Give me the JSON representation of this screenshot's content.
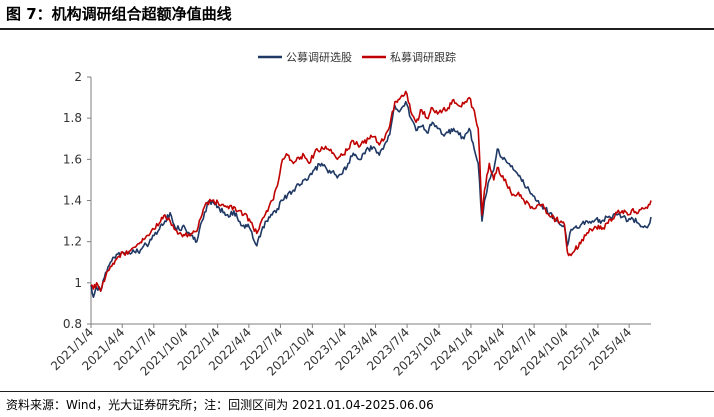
{
  "figure": {
    "title": "图 7：机构调研组合超额净值曲线",
    "source": "资料来源：Wind，光大证券研究所；注：回测区间为 2021.01.04-2025.06.06"
  },
  "chart_data": {
    "type": "line",
    "title": "",
    "xlabel": "",
    "ylabel": "",
    "ylim": [
      0.8,
      2.0
    ],
    "yticks": [
      "0.8",
      "1",
      "1.2",
      "1.4",
      "1.6",
      "1.8",
      "2"
    ],
    "xticks": [
      "2021/1/4",
      "2021/4/4",
      "2021/7/4",
      "2021/10/4",
      "2022/1/4",
      "2022/4/4",
      "2022/7/4",
      "2022/10/4",
      "2023/1/4",
      "2023/4/4",
      "2023/7/4",
      "2023/10/4",
      "2024/1/4",
      "2024/4/4",
      "2024/7/4",
      "2024/10/4",
      "2025/1/4",
      "2025/4/4"
    ],
    "x_range": [
      "2021-01-04",
      "2025-06-06"
    ],
    "grid": false,
    "legend_position": "top-center",
    "series": [
      {
        "name": "公募调研选股",
        "color": "#1f3864",
        "points": [
          [
            "2021-01-04",
            0.99
          ],
          [
            "2021-01-11",
            0.93
          ],
          [
            "2021-01-20",
            0.98
          ],
          [
            "2021-02-01",
            0.96
          ],
          [
            "2021-02-15",
            1.05
          ],
          [
            "2021-03-01",
            1.1
          ],
          [
            "2021-03-15",
            1.12
          ],
          [
            "2021-04-05",
            1.15
          ],
          [
            "2021-04-20",
            1.14
          ],
          [
            "2021-05-05",
            1.16
          ],
          [
            "2021-05-20",
            1.15
          ],
          [
            "2021-06-05",
            1.18
          ],
          [
            "2021-06-20",
            1.19
          ],
          [
            "2021-07-05",
            1.23
          ],
          [
            "2021-07-20",
            1.26
          ],
          [
            "2021-08-05",
            1.3
          ],
          [
            "2021-08-20",
            1.34
          ],
          [
            "2021-09-01",
            1.28
          ],
          [
            "2021-09-15",
            1.26
          ],
          [
            "2021-10-01",
            1.27
          ],
          [
            "2021-10-20",
            1.23
          ],
          [
            "2021-11-05",
            1.2
          ],
          [
            "2021-11-20",
            1.3
          ],
          [
            "2021-12-05",
            1.38
          ],
          [
            "2021-12-20",
            1.4
          ],
          [
            "2022-01-05",
            1.37
          ],
          [
            "2022-01-20",
            1.34
          ],
          [
            "2022-02-05",
            1.32
          ],
          [
            "2022-02-20",
            1.35
          ],
          [
            "2022-03-05",
            1.3
          ],
          [
            "2022-03-20",
            1.28
          ],
          [
            "2022-04-05",
            1.27
          ],
          [
            "2022-04-27",
            1.18
          ],
          [
            "2022-05-10",
            1.25
          ],
          [
            "2022-05-25",
            1.3
          ],
          [
            "2022-06-10",
            1.33
          ],
          [
            "2022-06-25",
            1.36
          ],
          [
            "2022-07-10",
            1.4
          ],
          [
            "2022-07-25",
            1.43
          ],
          [
            "2022-08-10",
            1.45
          ],
          [
            "2022-08-25",
            1.48
          ],
          [
            "2022-09-10",
            1.5
          ],
          [
            "2022-09-25",
            1.52
          ],
          [
            "2022-10-10",
            1.55
          ],
          [
            "2022-10-31",
            1.58
          ],
          [
            "2022-11-15",
            1.55
          ],
          [
            "2022-11-30",
            1.54
          ],
          [
            "2022-12-15",
            1.51
          ],
          [
            "2022-12-30",
            1.53
          ],
          [
            "2023-01-15",
            1.58
          ],
          [
            "2023-01-30",
            1.63
          ],
          [
            "2023-02-15",
            1.6
          ],
          [
            "2023-03-01",
            1.63
          ],
          [
            "2023-03-15",
            1.65
          ],
          [
            "2023-03-31",
            1.66
          ],
          [
            "2023-04-15",
            1.62
          ],
          [
            "2023-04-30",
            1.67
          ],
          [
            "2023-05-15",
            1.72
          ],
          [
            "2023-05-30",
            1.86
          ],
          [
            "2023-06-15",
            1.84
          ],
          [
            "2023-06-30",
            1.88
          ],
          [
            "2023-07-15",
            1.8
          ],
          [
            "2023-07-30",
            1.74
          ],
          [
            "2023-08-15",
            1.76
          ],
          [
            "2023-08-30",
            1.73
          ],
          [
            "2023-09-15",
            1.78
          ],
          [
            "2023-09-30",
            1.75
          ],
          [
            "2023-10-15",
            1.72
          ],
          [
            "2023-10-30",
            1.73
          ],
          [
            "2023-11-15",
            1.75
          ],
          [
            "2023-11-30",
            1.72
          ],
          [
            "2023-12-15",
            1.7
          ],
          [
            "2023-12-30",
            1.75
          ],
          [
            "2024-01-10",
            1.68
          ],
          [
            "2024-01-25",
            1.58
          ],
          [
            "2024-02-05",
            1.3
          ],
          [
            "2024-02-12",
            1.4
          ],
          [
            "2024-02-26",
            1.5
          ],
          [
            "2024-03-10",
            1.55
          ],
          [
            "2024-03-20",
            1.65
          ],
          [
            "2024-04-05",
            1.6
          ],
          [
            "2024-04-20",
            1.58
          ],
          [
            "2024-05-05",
            1.55
          ],
          [
            "2024-05-20",
            1.52
          ],
          [
            "2024-06-05",
            1.48
          ],
          [
            "2024-06-20",
            1.45
          ],
          [
            "2024-07-05",
            1.42
          ],
          [
            "2024-07-20",
            1.38
          ],
          [
            "2024-08-05",
            1.36
          ],
          [
            "2024-08-20",
            1.34
          ],
          [
            "2024-09-05",
            1.3
          ],
          [
            "2024-09-20",
            1.28
          ],
          [
            "2024-09-30",
            1.27
          ],
          [
            "2024-10-08",
            1.18
          ],
          [
            "2024-10-15",
            1.24
          ],
          [
            "2024-10-30",
            1.27
          ],
          [
            "2024-11-15",
            1.28
          ],
          [
            "2024-11-30",
            1.3
          ],
          [
            "2024-12-15",
            1.29
          ],
          [
            "2024-12-30",
            1.31
          ],
          [
            "2025-01-15",
            1.3
          ],
          [
            "2025-01-30",
            1.32
          ],
          [
            "2025-02-15",
            1.32
          ],
          [
            "2025-02-28",
            1.33
          ],
          [
            "2025-03-15",
            1.32
          ],
          [
            "2025-03-31",
            1.3
          ],
          [
            "2025-04-15",
            1.31
          ],
          [
            "2025-04-30",
            1.29
          ],
          [
            "2025-05-15",
            1.27
          ],
          [
            "2025-05-30",
            1.28
          ],
          [
            "2025-06-06",
            1.32
          ]
        ]
      },
      {
        "name": "私募调研跟踪",
        "color": "#c00000",
        "points": [
          [
            "2021-01-04",
            0.99
          ],
          [
            "2021-01-11",
            0.97
          ],
          [
            "2021-01-20",
            1.0
          ],
          [
            "2021-02-01",
            0.96
          ],
          [
            "2021-02-15",
            1.03
          ],
          [
            "2021-03-01",
            1.08
          ],
          [
            "2021-03-15",
            1.11
          ],
          [
            "2021-04-05",
            1.15
          ],
          [
            "2021-04-20",
            1.14
          ],
          [
            "2021-05-05",
            1.17
          ],
          [
            "2021-05-20",
            1.19
          ],
          [
            "2021-06-05",
            1.21
          ],
          [
            "2021-06-20",
            1.23
          ],
          [
            "2021-07-05",
            1.26
          ],
          [
            "2021-07-20",
            1.29
          ],
          [
            "2021-08-05",
            1.33
          ],
          [
            "2021-08-20",
            1.3
          ],
          [
            "2021-09-01",
            1.26
          ],
          [
            "2021-09-15",
            1.24
          ],
          [
            "2021-10-01",
            1.23
          ],
          [
            "2021-10-20",
            1.24
          ],
          [
            "2021-11-05",
            1.25
          ],
          [
            "2021-11-20",
            1.33
          ],
          [
            "2021-12-05",
            1.39
          ],
          [
            "2021-12-20",
            1.4
          ],
          [
            "2022-01-05",
            1.39
          ],
          [
            "2022-01-20",
            1.38
          ],
          [
            "2022-02-05",
            1.36
          ],
          [
            "2022-02-20",
            1.37
          ],
          [
            "2022-03-05",
            1.35
          ],
          [
            "2022-03-20",
            1.33
          ],
          [
            "2022-04-05",
            1.31
          ],
          [
            "2022-04-27",
            1.24
          ],
          [
            "2022-05-10",
            1.3
          ],
          [
            "2022-05-25",
            1.35
          ],
          [
            "2022-06-10",
            1.4
          ],
          [
            "2022-06-25",
            1.47
          ],
          [
            "2022-07-10",
            1.6
          ],
          [
            "2022-07-25",
            1.62
          ],
          [
            "2022-08-10",
            1.58
          ],
          [
            "2022-08-25",
            1.61
          ],
          [
            "2022-09-10",
            1.62
          ],
          [
            "2022-09-25",
            1.58
          ],
          [
            "2022-10-10",
            1.63
          ],
          [
            "2022-10-31",
            1.66
          ],
          [
            "2022-11-15",
            1.65
          ],
          [
            "2022-11-30",
            1.63
          ],
          [
            "2022-12-15",
            1.6
          ],
          [
            "2022-12-30",
            1.62
          ],
          [
            "2023-01-15",
            1.65
          ],
          [
            "2023-01-30",
            1.69
          ],
          [
            "2023-02-15",
            1.66
          ],
          [
            "2023-03-01",
            1.68
          ],
          [
            "2023-03-15",
            1.7
          ],
          [
            "2023-03-31",
            1.71
          ],
          [
            "2023-04-15",
            1.67
          ],
          [
            "2023-04-30",
            1.7
          ],
          [
            "2023-05-15",
            1.76
          ],
          [
            "2023-05-30",
            1.88
          ],
          [
            "2023-06-15",
            1.9
          ],
          [
            "2023-06-30",
            1.93
          ],
          [
            "2023-07-15",
            1.83
          ],
          [
            "2023-07-30",
            1.78
          ],
          [
            "2023-08-15",
            1.84
          ],
          [
            "2023-08-30",
            1.8
          ],
          [
            "2023-09-15",
            1.85
          ],
          [
            "2023-09-30",
            1.82
          ],
          [
            "2023-10-15",
            1.84
          ],
          [
            "2023-10-30",
            1.85
          ],
          [
            "2023-11-15",
            1.89
          ],
          [
            "2023-11-30",
            1.86
          ],
          [
            "2023-12-15",
            1.87
          ],
          [
            "2023-12-30",
            1.9
          ],
          [
            "2024-01-10",
            1.85
          ],
          [
            "2024-01-25",
            1.75
          ],
          [
            "2024-02-05",
            1.33
          ],
          [
            "2024-02-12",
            1.45
          ],
          [
            "2024-02-26",
            1.58
          ],
          [
            "2024-03-10",
            1.5
          ],
          [
            "2024-03-20",
            1.56
          ],
          [
            "2024-04-05",
            1.52
          ],
          [
            "2024-04-20",
            1.46
          ],
          [
            "2024-05-05",
            1.43
          ],
          [
            "2024-05-20",
            1.44
          ],
          [
            "2024-06-05",
            1.4
          ],
          [
            "2024-06-20",
            1.38
          ],
          [
            "2024-07-05",
            1.36
          ],
          [
            "2024-07-20",
            1.38
          ],
          [
            "2024-08-05",
            1.36
          ],
          [
            "2024-08-20",
            1.32
          ],
          [
            "2024-09-05",
            1.31
          ],
          [
            "2024-09-20",
            1.3
          ],
          [
            "2024-09-30",
            1.28
          ],
          [
            "2024-10-08",
            1.15
          ],
          [
            "2024-10-15",
            1.14
          ],
          [
            "2024-10-30",
            1.16
          ],
          [
            "2024-11-15",
            1.19
          ],
          [
            "2024-11-30",
            1.23
          ],
          [
            "2024-12-15",
            1.26
          ],
          [
            "2024-12-30",
            1.27
          ],
          [
            "2025-01-15",
            1.26
          ],
          [
            "2025-01-30",
            1.29
          ],
          [
            "2025-02-15",
            1.31
          ],
          [
            "2025-02-28",
            1.34
          ],
          [
            "2025-03-15",
            1.35
          ],
          [
            "2025-03-31",
            1.33
          ],
          [
            "2025-04-15",
            1.36
          ],
          [
            "2025-04-30",
            1.34
          ],
          [
            "2025-05-15",
            1.36
          ],
          [
            "2025-05-30",
            1.38
          ],
          [
            "2025-06-06",
            1.4
          ]
        ]
      }
    ]
  }
}
